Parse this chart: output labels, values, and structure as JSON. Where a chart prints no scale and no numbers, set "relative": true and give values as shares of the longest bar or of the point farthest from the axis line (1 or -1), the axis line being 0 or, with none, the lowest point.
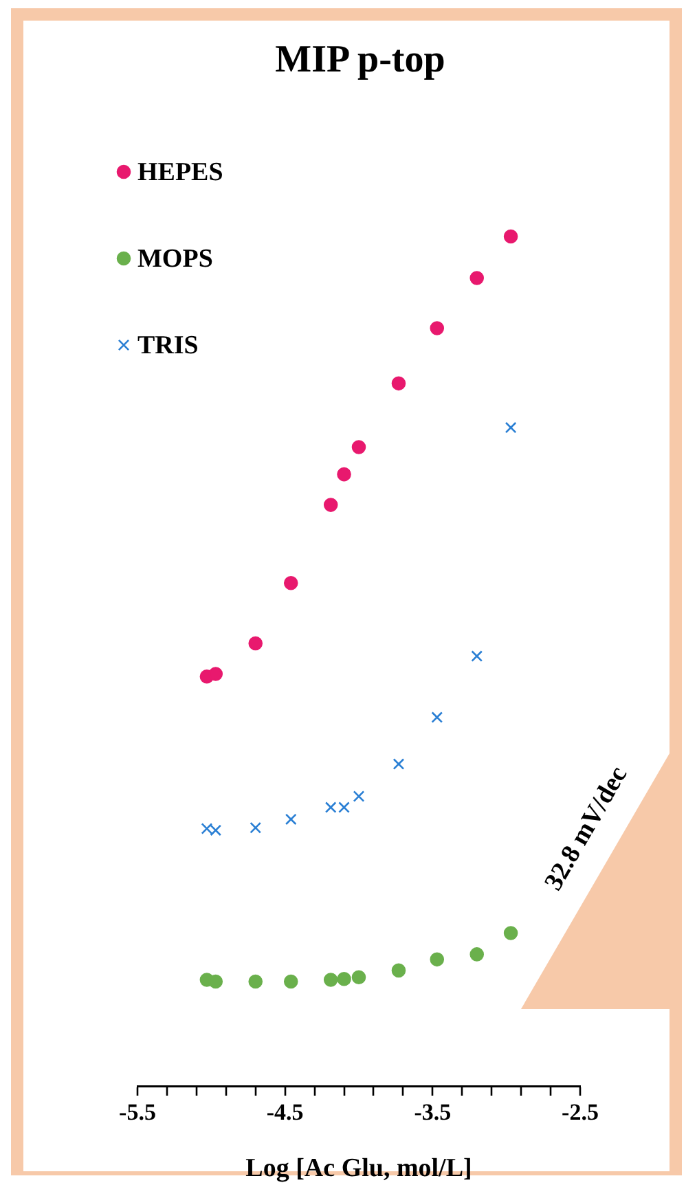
{
  "chart_data": {
    "type": "scatter",
    "title": "MIP p-top",
    "xlabel": "Log [Ac Glu, mol/L]",
    "relative": true,
    "x": [
      -5.03,
      -4.97,
      -4.7,
      -4.46,
      -4.19,
      -4.1,
      -4.0,
      -3.73,
      -3.47,
      -3.2,
      -2.97
    ],
    "xlim": [
      -5.5,
      -2.5
    ],
    "xticks": [
      -5.5,
      {
        "value": -5.3,
        "label": null
      },
      {
        "value": -5.1,
        "label": null
      },
      {
        "value": -4.9,
        "label": null
      },
      {
        "value": -4.7,
        "label": null
      },
      -4.5,
      {
        "value": -4.3,
        "label": null
      },
      {
        "value": -4.1,
        "label": null
      },
      {
        "value": -3.9,
        "label": null
      },
      {
        "value": -3.7,
        "label": null
      },
      -3.5,
      {
        "value": -3.3,
        "label": null
      },
      {
        "value": -3.1,
        "label": null
      },
      {
        "value": -2.9,
        "label": null
      },
      {
        "value": -2.7,
        "label": null
      },
      -2.5
    ],
    "series": [
      {
        "name": "HEPES",
        "color": "#e8196e",
        "marker": "circle",
        "values": [
          0.482,
          0.485,
          0.521,
          0.592,
          0.684,
          0.72,
          0.752,
          0.827,
          0.892,
          0.951,
          1
        ]
      },
      {
        "name": "MOPS",
        "color": "#6ab04c",
        "marker": "circle",
        "values": [
          0.125,
          0.123,
          0.123,
          0.123,
          0.125,
          0.126,
          0.128,
          0.136,
          0.149,
          0.155,
          0.18
        ]
      },
      {
        "name": "TRIS",
        "color": "#2a7fd4",
        "marker": "cross",
        "values": [
          0.303,
          0.301,
          0.304,
          0.314,
          0.328,
          0.328,
          0.341,
          0.379,
          0.434,
          0.506,
          0.775
        ]
      }
    ],
    "legend": "top left",
    "grid": false,
    "annotations": [
      "32.8 mV/dec"
    ]
  }
}
